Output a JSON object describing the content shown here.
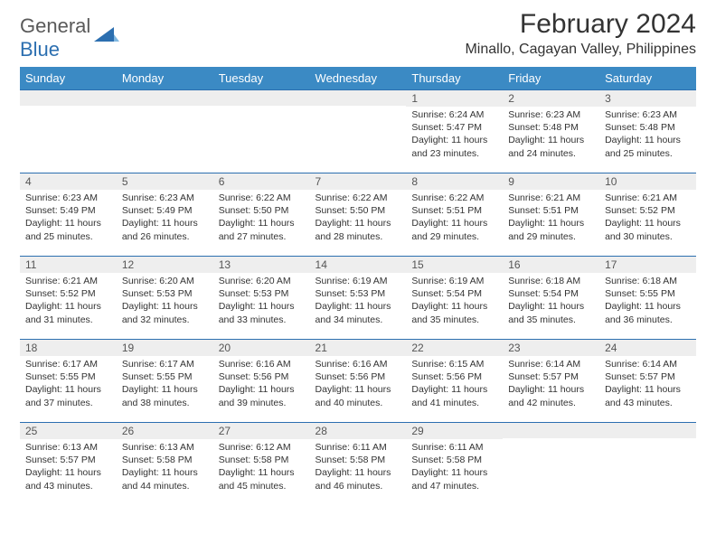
{
  "logo": {
    "text1": "General",
    "text2": "Blue"
  },
  "title": "February 2024",
  "location": "Minallo, Cagayan Valley, Philippines",
  "colors": {
    "header_bg": "#3b8ac4",
    "header_text": "#ffffff",
    "row_rule": "#2c6fb0",
    "daynum_bg": "#eeeeee",
    "body_text": "#333333",
    "logo_gray": "#5a5a5a",
    "logo_blue": "#2c6fb0",
    "page_bg": "#ffffff"
  },
  "weekdays": [
    "Sunday",
    "Monday",
    "Tuesday",
    "Wednesday",
    "Thursday",
    "Friday",
    "Saturday"
  ],
  "weeks": [
    [
      null,
      null,
      null,
      null,
      {
        "n": "1",
        "sr": "6:24 AM",
        "ss": "5:47 PM",
        "dl": "11 hours and 23 minutes."
      },
      {
        "n": "2",
        "sr": "6:23 AM",
        "ss": "5:48 PM",
        "dl": "11 hours and 24 minutes."
      },
      {
        "n": "3",
        "sr": "6:23 AM",
        "ss": "5:48 PM",
        "dl": "11 hours and 25 minutes."
      }
    ],
    [
      {
        "n": "4",
        "sr": "6:23 AM",
        "ss": "5:49 PM",
        "dl": "11 hours and 25 minutes."
      },
      {
        "n": "5",
        "sr": "6:23 AM",
        "ss": "5:49 PM",
        "dl": "11 hours and 26 minutes."
      },
      {
        "n": "6",
        "sr": "6:22 AM",
        "ss": "5:50 PM",
        "dl": "11 hours and 27 minutes."
      },
      {
        "n": "7",
        "sr": "6:22 AM",
        "ss": "5:50 PM",
        "dl": "11 hours and 28 minutes."
      },
      {
        "n": "8",
        "sr": "6:22 AM",
        "ss": "5:51 PM",
        "dl": "11 hours and 29 minutes."
      },
      {
        "n": "9",
        "sr": "6:21 AM",
        "ss": "5:51 PM",
        "dl": "11 hours and 29 minutes."
      },
      {
        "n": "10",
        "sr": "6:21 AM",
        "ss": "5:52 PM",
        "dl": "11 hours and 30 minutes."
      }
    ],
    [
      {
        "n": "11",
        "sr": "6:21 AM",
        "ss": "5:52 PM",
        "dl": "11 hours and 31 minutes."
      },
      {
        "n": "12",
        "sr": "6:20 AM",
        "ss": "5:53 PM",
        "dl": "11 hours and 32 minutes."
      },
      {
        "n": "13",
        "sr": "6:20 AM",
        "ss": "5:53 PM",
        "dl": "11 hours and 33 minutes."
      },
      {
        "n": "14",
        "sr": "6:19 AM",
        "ss": "5:53 PM",
        "dl": "11 hours and 34 minutes."
      },
      {
        "n": "15",
        "sr": "6:19 AM",
        "ss": "5:54 PM",
        "dl": "11 hours and 35 minutes."
      },
      {
        "n": "16",
        "sr": "6:18 AM",
        "ss": "5:54 PM",
        "dl": "11 hours and 35 minutes."
      },
      {
        "n": "17",
        "sr": "6:18 AM",
        "ss": "5:55 PM",
        "dl": "11 hours and 36 minutes."
      }
    ],
    [
      {
        "n": "18",
        "sr": "6:17 AM",
        "ss": "5:55 PM",
        "dl": "11 hours and 37 minutes."
      },
      {
        "n": "19",
        "sr": "6:17 AM",
        "ss": "5:55 PM",
        "dl": "11 hours and 38 minutes."
      },
      {
        "n": "20",
        "sr": "6:16 AM",
        "ss": "5:56 PM",
        "dl": "11 hours and 39 minutes."
      },
      {
        "n": "21",
        "sr": "6:16 AM",
        "ss": "5:56 PM",
        "dl": "11 hours and 40 minutes."
      },
      {
        "n": "22",
        "sr": "6:15 AM",
        "ss": "5:56 PM",
        "dl": "11 hours and 41 minutes."
      },
      {
        "n": "23",
        "sr": "6:14 AM",
        "ss": "5:57 PM",
        "dl": "11 hours and 42 minutes."
      },
      {
        "n": "24",
        "sr": "6:14 AM",
        "ss": "5:57 PM",
        "dl": "11 hours and 43 minutes."
      }
    ],
    [
      {
        "n": "25",
        "sr": "6:13 AM",
        "ss": "5:57 PM",
        "dl": "11 hours and 43 minutes."
      },
      {
        "n": "26",
        "sr": "6:13 AM",
        "ss": "5:58 PM",
        "dl": "11 hours and 44 minutes."
      },
      {
        "n": "27",
        "sr": "6:12 AM",
        "ss": "5:58 PM",
        "dl": "11 hours and 45 minutes."
      },
      {
        "n": "28",
        "sr": "6:11 AM",
        "ss": "5:58 PM",
        "dl": "11 hours and 46 minutes."
      },
      {
        "n": "29",
        "sr": "6:11 AM",
        "ss": "5:58 PM",
        "dl": "11 hours and 47 minutes."
      },
      null,
      null
    ]
  ],
  "labels": {
    "sunrise": "Sunrise:",
    "sunset": "Sunset:",
    "daylight": "Daylight:"
  }
}
